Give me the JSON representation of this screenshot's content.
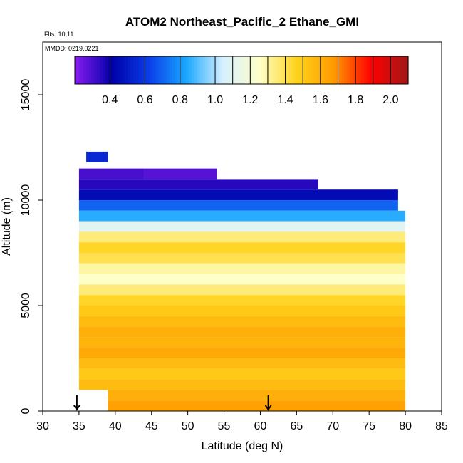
{
  "chart_data": {
    "type": "heatmap",
    "title": "ATOM2 Northeast_Pacific_2 Ethane_GMI",
    "flights_label": "Flts: 10,11",
    "date_label": "MMDD: 0219,0221",
    "xlabel": "Latitude (deg N)",
    "ylabel": "Altitude (m)",
    "xlim": [
      30,
      85
    ],
    "ylim": [
      0,
      17500
    ],
    "x_ticks": [
      "30",
      "35",
      "40",
      "45",
      "50",
      "55",
      "60",
      "65",
      "70",
      "75",
      "80",
      "85"
    ],
    "y_ticks": [
      "0",
      "5000",
      "10000",
      "15000"
    ],
    "colorbar": {
      "min": 0.2,
      "max": 2.1,
      "tick_labels": [
        "0.4",
        "0.6",
        "0.8",
        "1.0",
        "1.2",
        "1.4",
        "1.6",
        "1.8",
        "2.0"
      ],
      "tick_values": [
        0.4,
        0.6,
        0.8,
        1.0,
        1.2,
        1.4,
        1.6,
        1.8,
        2.0
      ],
      "colors": [
        "#8a1df0",
        "#0000a8",
        "#0a3de8",
        "#1aa6ff",
        "#d6f0ff",
        "#ffffc8",
        "#ffd21a",
        "#ff9a00",
        "#ff0000",
        "#a01818"
      ]
    },
    "grid": false,
    "arrows_at_latitude": [
      34.7,
      61.1
    ],
    "layers": [
      {
        "alt": 11800,
        "from": 36,
        "to": 39,
        "value": 0.55
      },
      {
        "alt": 11000,
        "from": 35,
        "to": 44,
        "value": 0.3
      },
      {
        "alt": 11000,
        "from": 44,
        "to": 54,
        "value": 0.28
      },
      {
        "alt": 10500,
        "from": 35,
        "to": 68,
        "value": 0.35
      },
      {
        "alt": 10000,
        "from": 35,
        "to": 79,
        "value": 0.45
      },
      {
        "alt": 9500,
        "from": 35,
        "to": 79,
        "value": 0.7
      },
      {
        "alt": 9000,
        "from": 35,
        "to": 80,
        "value": 0.85
      },
      {
        "alt": 8500,
        "from": 35,
        "to": 80,
        "value": 1.1
      },
      {
        "alt": 8000,
        "from": 35,
        "to": 80,
        "value": 1.35
      },
      {
        "alt": 7500,
        "from": 35,
        "to": 80,
        "value": 1.45
      },
      {
        "alt": 7000,
        "from": 35,
        "to": 80,
        "value": 1.4
      },
      {
        "alt": 6500,
        "from": 35,
        "to": 80,
        "value": 1.3
      },
      {
        "alt": 6000,
        "from": 35,
        "to": 80,
        "value": 1.25
      },
      {
        "alt": 5500,
        "from": 35,
        "to": 80,
        "value": 1.35
      },
      {
        "alt": 5000,
        "from": 35,
        "to": 80,
        "value": 1.45
      },
      {
        "alt": 4500,
        "from": 35,
        "to": 80,
        "value": 1.5
      },
      {
        "alt": 4000,
        "from": 35,
        "to": 80,
        "value": 1.55
      },
      {
        "alt": 3500,
        "from": 35,
        "to": 80,
        "value": 1.6
      },
      {
        "alt": 3000,
        "from": 35,
        "to": 80,
        "value": 1.58
      },
      {
        "alt": 2500,
        "from": 35,
        "to": 80,
        "value": 1.62
      },
      {
        "alt": 2000,
        "from": 35,
        "to": 80,
        "value": 1.55
      },
      {
        "alt": 1500,
        "from": 35,
        "to": 80,
        "value": 1.5
      },
      {
        "alt": 1000,
        "from": 35,
        "to": 80,
        "value": 1.55
      },
      {
        "alt": 500,
        "from": 39,
        "to": 80,
        "value": 1.6
      },
      {
        "alt": 0,
        "from": 39,
        "to": 80,
        "value": 1.65
      }
    ]
  }
}
